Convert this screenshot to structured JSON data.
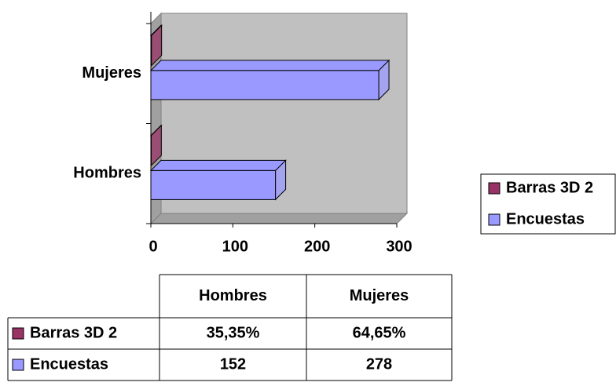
{
  "chart_data": {
    "type": "bar3d",
    "orientation": "horizontal",
    "categories": [
      "Hombres",
      "Mujeres"
    ],
    "series": [
      {
        "name": "Barras 3D 2",
        "color": "#993366",
        "values": [
          0.3535,
          0.6465
        ],
        "value_labels": [
          "35,35%",
          "64,65%"
        ]
      },
      {
        "name": "Encuestas",
        "color": "#9999ff",
        "values": [
          152,
          278
        ]
      }
    ],
    "xlim": [
      0,
      300
    ],
    "xticks": [
      0,
      100,
      200,
      300
    ],
    "legend": "right",
    "data_table": true
  }
}
